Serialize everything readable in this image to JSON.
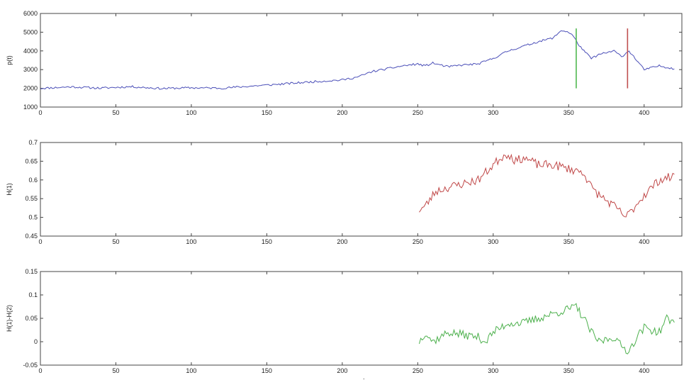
{
  "chart_data": [
    {
      "type": "line",
      "ylabel": "p(t)",
      "xlim": [
        0,
        425
      ],
      "ylim": [
        1000,
        6000
      ],
      "xticks": [
        0,
        50,
        100,
        150,
        200,
        250,
        300,
        350,
        400
      ],
      "yticks": [
        1000,
        2000,
        3000,
        4000,
        5000,
        6000
      ],
      "grid": false,
      "line_color": "#4b4fb8",
      "seed": 11,
      "noise": 55,
      "keypoints": [
        [
          0,
          2000
        ],
        [
          20,
          2080
        ],
        [
          40,
          2010
        ],
        [
          60,
          2090
        ],
        [
          80,
          1990
        ],
        [
          100,
          2030
        ],
        [
          120,
          2010
        ],
        [
          140,
          2120
        ],
        [
          160,
          2230
        ],
        [
          180,
          2350
        ],
        [
          200,
          2450
        ],
        [
          210,
          2600
        ],
        [
          220,
          2900
        ],
        [
          230,
          3050
        ],
        [
          240,
          3200
        ],
        [
          250,
          3300
        ],
        [
          255,
          3200
        ],
        [
          260,
          3350
        ],
        [
          270,
          3150
        ],
        [
          280,
          3250
        ],
        [
          290,
          3300
        ],
        [
          300,
          3600
        ],
        [
          310,
          4000
        ],
        [
          320,
          4250
        ],
        [
          330,
          4500
        ],
        [
          340,
          4700
        ],
        [
          345,
          5100
        ],
        [
          350,
          5000
        ],
        [
          353,
          4800
        ],
        [
          356,
          4400
        ],
        [
          360,
          4000
        ],
        [
          365,
          3600
        ],
        [
          370,
          3800
        ],
        [
          380,
          4000
        ],
        [
          385,
          3700
        ],
        [
          390,
          4000
        ],
        [
          394,
          3600
        ],
        [
          400,
          3000
        ],
        [
          410,
          3200
        ],
        [
          420,
          3050
        ]
      ],
      "vertical_markers": [
        {
          "x": 355,
          "y_range": [
            2000,
            5200
          ],
          "color": "#4fb84f"
        },
        {
          "x": 389,
          "y_range": [
            2000,
            5200
          ],
          "color": "#c05050"
        }
      ]
    },
    {
      "type": "line",
      "ylabel": "H(1)",
      "xlim": [
        0,
        425
      ],
      "ylim": [
        0.45,
        0.7
      ],
      "xticks": [
        0,
        50,
        100,
        150,
        200,
        250,
        300,
        350,
        400
      ],
      "yticks": [
        0.45,
        0.5,
        0.55,
        0.6,
        0.65,
        0.7
      ],
      "grid": false,
      "line_color": "#c04848",
      "seed": 23,
      "noise": 0.012,
      "keypoints": [
        [
          251,
          0.52
        ],
        [
          255,
          0.53
        ],
        [
          262,
          0.57
        ],
        [
          270,
          0.58
        ],
        [
          280,
          0.59
        ],
        [
          290,
          0.6
        ],
        [
          300,
          0.64
        ],
        [
          305,
          0.66
        ],
        [
          310,
          0.67
        ],
        [
          315,
          0.65
        ],
        [
          320,
          0.66
        ],
        [
          330,
          0.64
        ],
        [
          340,
          0.64
        ],
        [
          350,
          0.63
        ],
        [
          360,
          0.62
        ],
        [
          365,
          0.58
        ],
        [
          370,
          0.56
        ],
        [
          380,
          0.53
        ],
        [
          388,
          0.5
        ],
        [
          392,
          0.52
        ],
        [
          400,
          0.56
        ],
        [
          410,
          0.6
        ],
        [
          420,
          0.61
        ]
      ]
    },
    {
      "type": "line",
      "ylabel": "H(1)-H(2)",
      "xlim": [
        0,
        425
      ],
      "ylim": [
        -0.05,
        0.15
      ],
      "xticks": [
        0,
        50,
        100,
        150,
        200,
        250,
        300,
        350,
        400
      ],
      "yticks": [
        -0.05,
        0,
        0.05,
        0.1,
        0.15
      ],
      "grid": false,
      "line_color": "#4cb04c",
      "seed": 37,
      "noise": 0.009,
      "keypoints": [
        [
          251,
          0.0
        ],
        [
          255,
          0.02
        ],
        [
          260,
          0.0
        ],
        [
          270,
          0.02
        ],
        [
          280,
          0.015
        ],
        [
          290,
          0.01
        ],
        [
          295,
          0.0
        ],
        [
          300,
          0.02
        ],
        [
          310,
          0.04
        ],
        [
          320,
          0.04
        ],
        [
          330,
          0.05
        ],
        [
          340,
          0.06
        ],
        [
          350,
          0.07
        ],
        [
          355,
          0.075
        ],
        [
          360,
          0.05
        ],
        [
          365,
          0.02
        ],
        [
          370,
          0.0
        ],
        [
          380,
          0.01
        ],
        [
          385,
          -0.01
        ],
        [
          390,
          -0.02
        ],
        [
          395,
          0.01
        ],
        [
          400,
          0.03
        ],
        [
          410,
          0.02
        ],
        [
          415,
          0.05
        ],
        [
          420,
          0.04
        ]
      ]
    }
  ]
}
